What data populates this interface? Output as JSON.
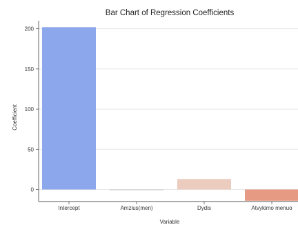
{
  "chart_data": {
    "type": "bar",
    "title": "Bar Chart of Regression Coefficients",
    "xlabel": "Variable",
    "ylabel": "Coefficient",
    "categories": [
      "Intercept",
      "Amzius(men)",
      "Dydis",
      "Atvykimo menuo"
    ],
    "values": [
      202,
      -0.5,
      13,
      -14
    ],
    "colors": [
      "#8ca7ec",
      "#c7c7c7",
      "#ecccbe",
      "#e69a84"
    ],
    "ylim": [
      -15,
      210
    ],
    "yticks": [
      0,
      50,
      100,
      150,
      200
    ],
    "grid": true
  }
}
